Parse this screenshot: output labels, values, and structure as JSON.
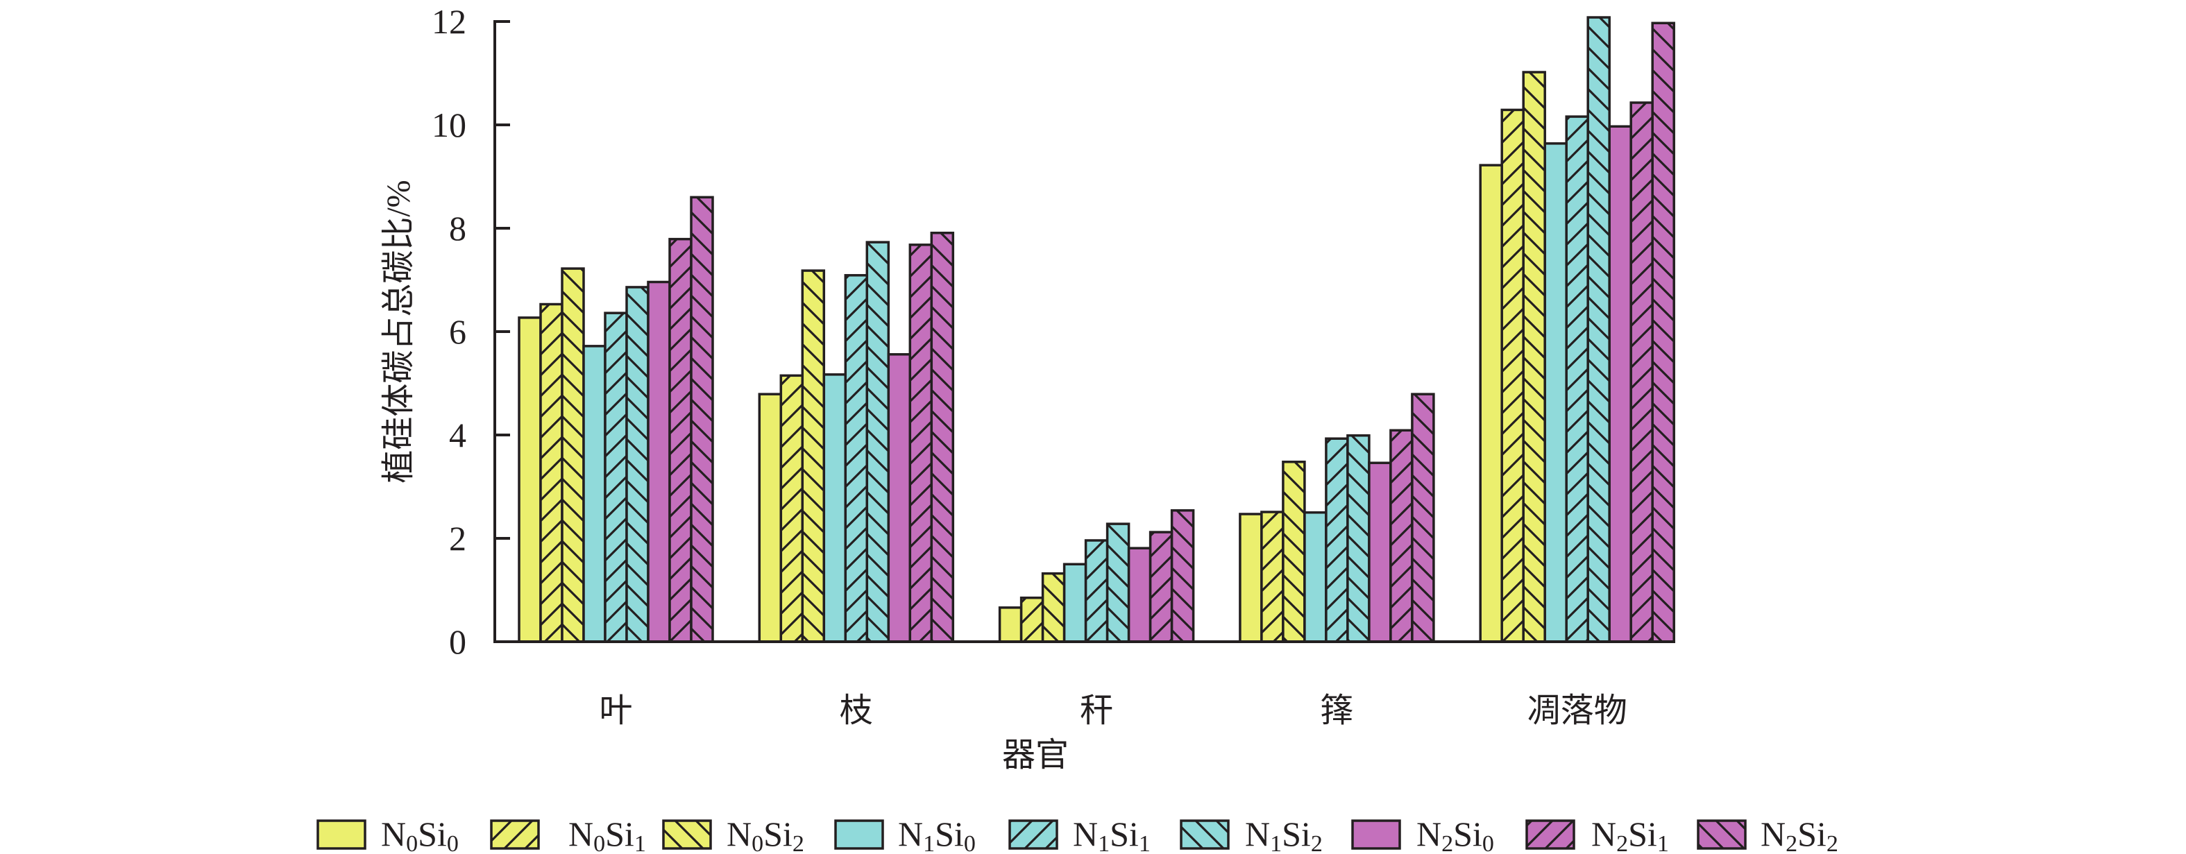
{
  "chart_data": {
    "type": "bar",
    "title": "",
    "xlabel": "器官",
    "ylabel": "植硅体碳占总碳比/%",
    "ylim": [
      0,
      12
    ],
    "yticks": [
      "0",
      "2",
      "4",
      "6",
      "8",
      "10",
      "12"
    ],
    "grid": false,
    "legend_position": "bottom",
    "categories": [
      "叶",
      "枝",
      "秆",
      "箨",
      "凋落物"
    ],
    "series": [
      {
        "name": "N0Si0",
        "label": {
          "n": "N",
          "n_sub": "0",
          "si": "Si",
          "si_sub": "0"
        },
        "color": "#ebef6e",
        "hatch": "none",
        "values": [
          6.27,
          4.79,
          0.66,
          2.47,
          9.22
        ]
      },
      {
        "name": "N0Si1",
        "label": {
          "n": "N",
          "n_sub": "0",
          "si": "Si",
          "si_sub": "1"
        },
        "color": "#ebef6e",
        "hatch": "forward",
        "values": [
          6.53,
          5.15,
          0.85,
          2.51,
          10.29
        ]
      },
      {
        "name": "N0Si2",
        "label": {
          "n": "N",
          "n_sub": "0",
          "si": "Si",
          "si_sub": "2"
        },
        "color": "#ebef6e",
        "hatch": "backward",
        "values": [
          7.22,
          7.18,
          1.32,
          3.48,
          11.02
        ]
      },
      {
        "name": "N1Si0",
        "label": {
          "n": "N",
          "n_sub": "1",
          "si": "Si",
          "si_sub": "0"
        },
        "color": "#90dada",
        "hatch": "none",
        "values": [
          5.72,
          5.17,
          1.5,
          2.5,
          9.64
        ]
      },
      {
        "name": "N1Si1",
        "label": {
          "n": "N",
          "n_sub": "1",
          "si": "Si",
          "si_sub": "1"
        },
        "color": "#90dada",
        "hatch": "forward",
        "values": [
          6.36,
          7.09,
          1.96,
          3.93,
          10.16
        ]
      },
      {
        "name": "N1Si2",
        "label": {
          "n": "N",
          "n_sub": "1",
          "si": "Si",
          "si_sub": "2"
        },
        "color": "#90dada",
        "hatch": "backward",
        "values": [
          6.86,
          7.73,
          2.28,
          3.99,
          12.08
        ]
      },
      {
        "name": "N2Si0",
        "label": {
          "n": "N",
          "n_sub": "2",
          "si": "Si",
          "si_sub": "0"
        },
        "color": "#c470bc",
        "hatch": "none",
        "values": [
          6.96,
          5.56,
          1.81,
          3.46,
          9.97
        ]
      },
      {
        "name": "N2Si1",
        "label": {
          "n": "N",
          "n_sub": "2",
          "si": "Si",
          "si_sub": "1"
        },
        "color": "#c470bc",
        "hatch": "forward",
        "values": [
          7.79,
          7.68,
          2.12,
          4.09,
          10.43
        ]
      },
      {
        "name": "N2Si2",
        "label": {
          "n": "N",
          "n_sub": "2",
          "si": "Si",
          "si_sub": "2"
        },
        "color": "#c470bc",
        "hatch": "backward",
        "values": [
          8.6,
          7.91,
          2.54,
          4.79,
          11.97
        ]
      }
    ]
  }
}
